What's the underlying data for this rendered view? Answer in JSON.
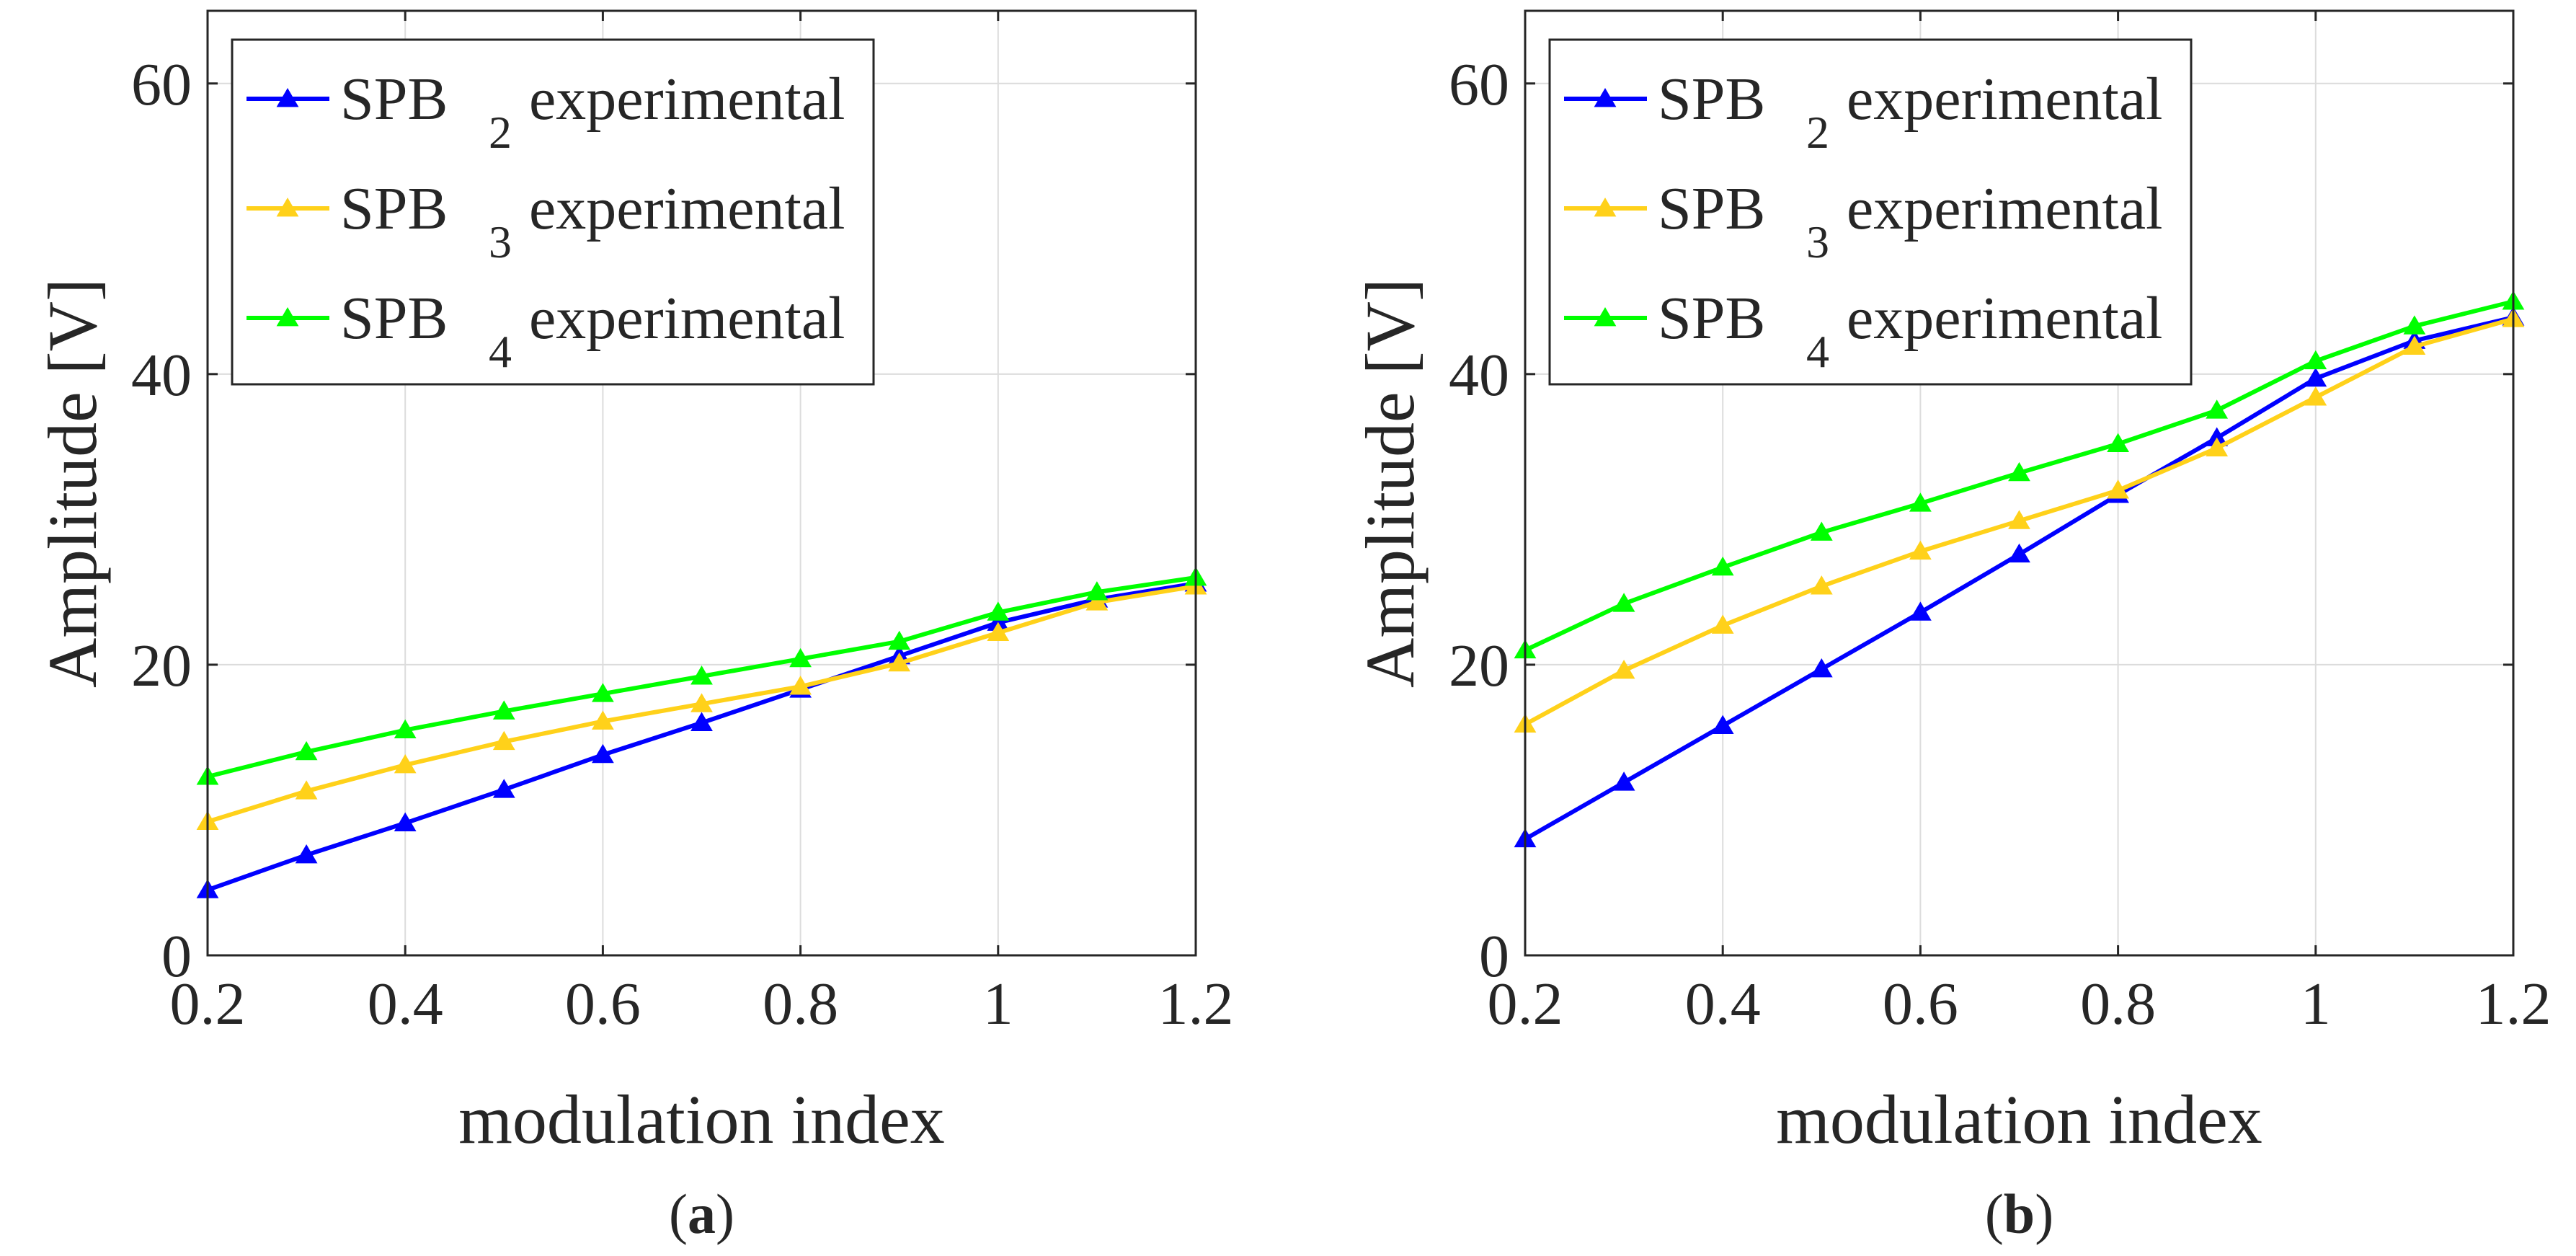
{
  "chart_data": [
    {
      "type": "line",
      "panel_label": {
        "open": "(",
        "letter": "a",
        "close": ")"
      },
      "xlabel": "modulation index",
      "ylabel": "Amplitude [V]",
      "xlim": [
        0.2,
        1.2
      ],
      "ylim": [
        0,
        65
      ],
      "xticks": [
        0.2,
        0.4,
        0.6,
        0.8,
        1,
        1.2
      ],
      "xtick_labels": [
        "0.2",
        "0.4",
        "0.6",
        "0.8",
        "1",
        "1.2"
      ],
      "yticks": [
        0,
        20,
        40,
        60
      ],
      "ytick_labels": [
        "0",
        "20",
        "40",
        "60"
      ],
      "grid": true,
      "legend_position": "top-left",
      "x": [
        0.2,
        0.3,
        0.4,
        0.5,
        0.6,
        0.7,
        0.8,
        0.9,
        1.0,
        1.1,
        1.2
      ],
      "series": [
        {
          "name": {
            "base": "SPB",
            "sub": "2",
            "suffix": "experimental"
          },
          "color": "#0000ff",
          "values": [
            4.5,
            6.9,
            9.1,
            11.4,
            13.8,
            16.0,
            18.3,
            20.6,
            22.9,
            24.5,
            25.6
          ]
        },
        {
          "name": {
            "base": "SPB",
            "sub": "3",
            "suffix": "experimental"
          },
          "color": "#ffd11a",
          "values": [
            9.2,
            11.3,
            13.1,
            14.7,
            16.1,
            17.3,
            18.5,
            20.1,
            22.2,
            24.3,
            25.4
          ]
        },
        {
          "name": {
            "base": "SPB",
            "sub": "4",
            "suffix": "experimental"
          },
          "color": "#00ff00",
          "values": [
            12.3,
            14.0,
            15.5,
            16.8,
            18.0,
            19.2,
            20.4,
            21.6,
            23.6,
            25.0,
            26.0
          ]
        }
      ]
    },
    {
      "type": "line",
      "panel_label": {
        "open": "(",
        "letter": "b",
        "close": ")"
      },
      "xlabel": "modulation index",
      "ylabel": "Amplitude [V]",
      "xlim": [
        0.2,
        1.2
      ],
      "ylim": [
        0,
        65
      ],
      "xticks": [
        0.2,
        0.4,
        0.6,
        0.8,
        1,
        1.2
      ],
      "xtick_labels": [
        "0.2",
        "0.4",
        "0.6",
        "0.8",
        "1",
        "1.2"
      ],
      "yticks": [
        0,
        20,
        40,
        60
      ],
      "ytick_labels": [
        "0",
        "20",
        "40",
        "60"
      ],
      "grid": true,
      "legend_position": "top-left",
      "x": [
        0.2,
        0.3,
        0.4,
        0.5,
        0.6,
        0.7,
        0.8,
        0.9,
        1.0,
        1.1,
        1.2
      ],
      "series": [
        {
          "name": {
            "base": "SPB",
            "sub": "2",
            "suffix": "experimental"
          },
          "color": "#0000ff",
          "values": [
            8.0,
            11.9,
            15.8,
            19.7,
            23.6,
            27.6,
            31.7,
            35.6,
            39.7,
            42.3,
            43.9
          ]
        },
        {
          "name": {
            "base": "SPB",
            "sub": "3",
            "suffix": "experimental"
          },
          "color": "#ffd11a",
          "values": [
            15.9,
            19.6,
            22.7,
            25.4,
            27.8,
            29.9,
            32.0,
            34.9,
            38.4,
            41.9,
            43.8
          ]
        },
        {
          "name": {
            "base": "SPB",
            "sub": "4",
            "suffix": "experimental"
          },
          "color": "#00ff00",
          "values": [
            21.0,
            24.2,
            26.7,
            29.1,
            31.1,
            33.2,
            35.2,
            37.5,
            40.9,
            43.3,
            45.0
          ]
        }
      ]
    }
  ]
}
